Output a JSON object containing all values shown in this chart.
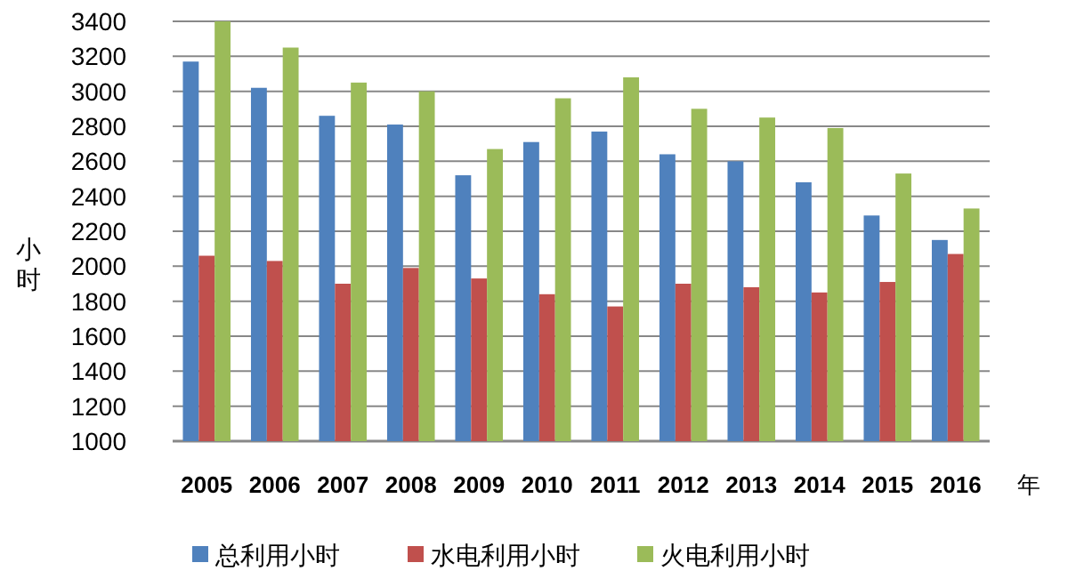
{
  "chart_data": {
    "type": "bar",
    "categories": [
      "2005",
      "2006",
      "2007",
      "2008",
      "2009",
      "2010",
      "2011",
      "2012",
      "2013",
      "2014",
      "2015",
      "2016"
    ],
    "xlabel": "年",
    "ylabel": "小时",
    "series": [
      {
        "name": "总利用小时",
        "color": "#4f81bd",
        "values": [
          3170,
          3020,
          2860,
          2810,
          2520,
          2710,
          2770,
          2640,
          2600,
          2480,
          2290,
          2150
        ]
      },
      {
        "name": "水电利用小时",
        "color": "#c0504d",
        "values": [
          2060,
          2030,
          1900,
          1990,
          1930,
          1840,
          1770,
          1900,
          1880,
          1850,
          1910,
          2070
        ]
      },
      {
        "name": "火电利用小时",
        "color": "#9bbb59",
        "values": [
          3400,
          3250,
          3050,
          3000,
          2670,
          2960,
          3080,
          2900,
          2850,
          2790,
          2530,
          2330
        ]
      }
    ],
    "ylim": [
      1000,
      3400
    ],
    "yticks": [
      1000,
      1200,
      1400,
      1600,
      1800,
      2000,
      2200,
      2400,
      2600,
      2800,
      3000,
      3200,
      3400
    ],
    "grid": "y",
    "legend": "bottom"
  }
}
